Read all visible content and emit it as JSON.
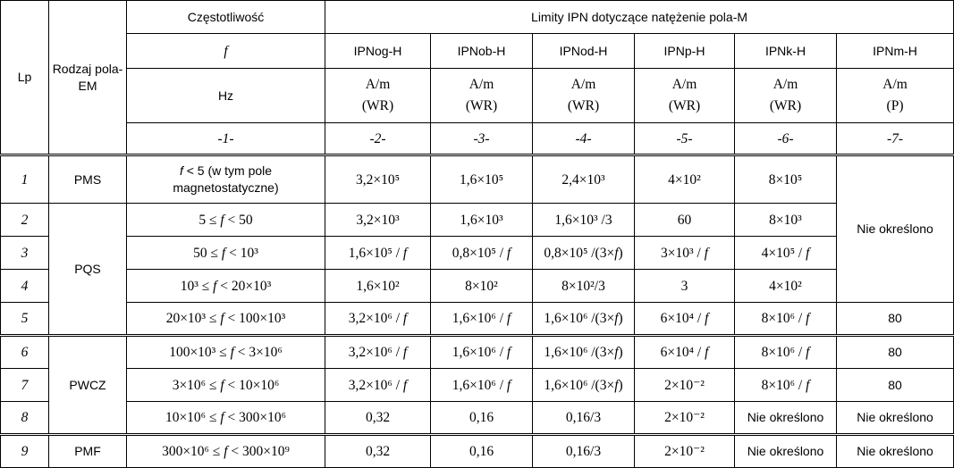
{
  "header": {
    "lp": "Lp",
    "rodzaj": "Rodzaj pola-EM",
    "czestotliwosc": "Częstotliwość",
    "limity": "Limity IPN dotyczące natężenie pola-M",
    "f_symbol": "f",
    "hz": "Hz",
    "columns": [
      "IPNog-H",
      "IPNob-H",
      "IPNod-H",
      "IPNp-H",
      "IPNk-H",
      "IPNm-H"
    ],
    "unit": "A/m",
    "modes": [
      "(WR)",
      "(WR)",
      "(WR)",
      "(WR)",
      "(WR)",
      "(P)"
    ],
    "col_numbers": [
      "-1-",
      "-2-",
      "-3-",
      "-4-",
      "-5-",
      "-6-",
      "-7-"
    ]
  },
  "rows": [
    {
      "lp": "1",
      "type": "PMS",
      "freq": "f < 5 (w tym pole magnetostatyczne)",
      "v": [
        "3,2×10⁵",
        "1,6×10⁵",
        "2,4×10³",
        "4×10²",
        "8×10⁵"
      ]
    },
    {
      "lp": "2",
      "type": "PQS",
      "freq": "5 ≤ f < 50",
      "v": [
        "3,2×10³",
        "1,6×10³",
        "1,6×10³ /3",
        "60",
        "8×10³"
      ]
    },
    {
      "lp": "3",
      "freq": "50 ≤ f < 10³",
      "v": [
        "1,6×10⁵ / f",
        "0,8×10⁵ / f",
        "0,8×10⁵ /(3×f)",
        "3×10³ / f",
        "4×10⁵ / f"
      ]
    },
    {
      "lp": "4",
      "freq": "10³ ≤ f < 20×10³",
      "v": [
        "1,6×10²",
        "8×10²",
        "8×10²/3",
        "3",
        "4×10²"
      ]
    },
    {
      "lp": "5",
      "freq": "20×10³ ≤ f < 100×10³",
      "v": [
        "3,2×10⁶ / f",
        "1,6×10⁶ / f",
        "1,6×10⁶ /(3×f)",
        "6×10⁴ / f",
        "8×10⁶ / f",
        "80"
      ]
    },
    {
      "lp": "6",
      "type": "PWCZ",
      "freq": "100×10³ ≤ f < 3×10⁶",
      "v": [
        "3,2×10⁶ / f",
        "1,6×10⁶ / f",
        "1,6×10⁶ /(3×f)",
        "6×10⁴ / f",
        "8×10⁶ / f",
        "80"
      ]
    },
    {
      "lp": "7",
      "freq": "3×10⁶ ≤ f < 10×10⁶",
      "v": [
        "3,2×10⁶ / f",
        "1,6×10⁶ / f",
        "1,6×10⁶ /(3×f)",
        "2×10⁻²",
        "8×10⁶ / f",
        "80"
      ]
    },
    {
      "lp": "8",
      "freq": "10×10⁶ ≤ f < 300×10⁶",
      "v": [
        "0,32",
        "0,16",
        "0,16/3",
        "2×10⁻²",
        "Nie określono",
        "Nie określono"
      ]
    },
    {
      "lp": "9",
      "type": "PMF",
      "freq": "300×10⁶ ≤ f < 300×10⁹",
      "v": [
        "0,32",
        "0,16",
        "0,16/3",
        "2×10⁻²",
        "Nie określono",
        "Nie określono"
      ]
    }
  ],
  "merged_ipnm": "Nie określono"
}
